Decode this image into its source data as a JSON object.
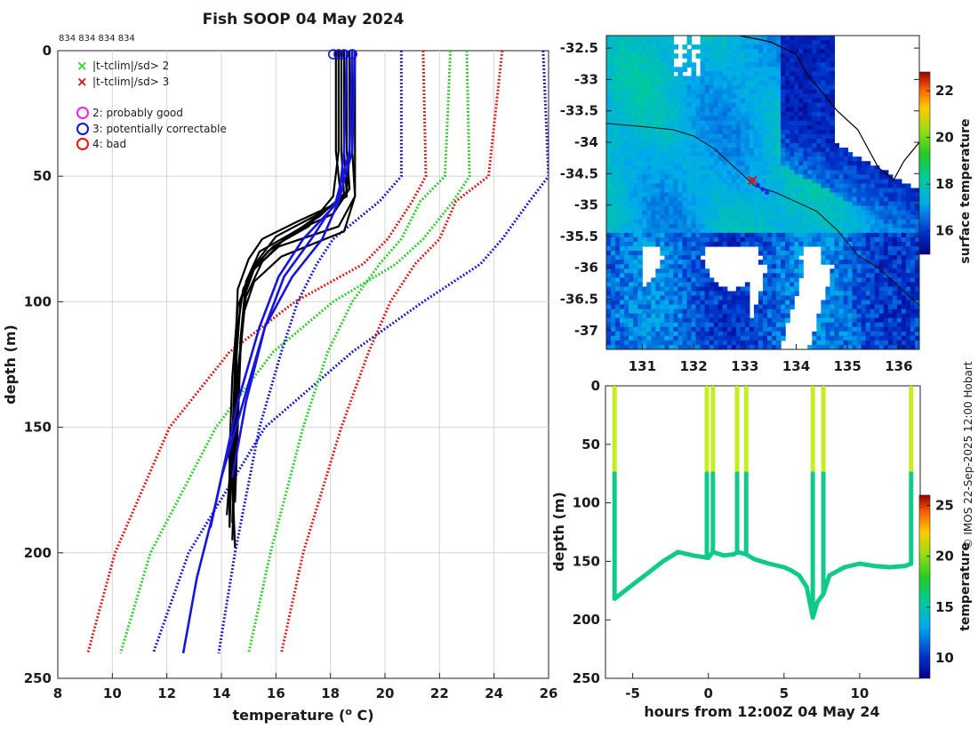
{
  "title": "Fish SOOP 04 May 2024",
  "cruise_ids": "834 834 834 834",
  "credit": "© IMOS 22-Sep-2025 12:00 Hobart",
  "legend": [
    {
      "marker": "x",
      "color": "#22dd22",
      "label": "|t-tclim|/sd> 2"
    },
    {
      "marker": "x",
      "color": "#dd1111",
      "label": "|t-tclim|/sd> 3"
    },
    {
      "marker": "o",
      "color": "#ee22ee",
      "label": "2: probably good"
    },
    {
      "marker": "o",
      "color": "#1111dd",
      "label": "3: potentially correctable"
    },
    {
      "marker": "o",
      "color": "#ee1111",
      "label": "4: bad"
    }
  ],
  "chart_data": [
    {
      "type": "line",
      "name": "profile",
      "xlabel": "temperature (o C)",
      "ylabel": "depth (m)",
      "xlim": [
        8,
        26
      ],
      "ylim": [
        250,
        0
      ],
      "xticks": [
        8,
        10,
        12,
        14,
        16,
        18,
        20,
        22,
        24,
        26
      ],
      "yticks": [
        0,
        50,
        100,
        150,
        200,
        250
      ],
      "clim_depth": [
        0,
        50,
        60,
        75,
        85,
        100,
        120,
        150,
        200,
        240
      ],
      "clim_series": [
        {
          "name": "-3sd",
          "color": "#dd1111",
          "values": [
            21.4,
            21.5,
            21.0,
            20.1,
            19.2,
            16.7,
            14.3,
            12.1,
            10.1,
            9.1
          ]
        },
        {
          "name": "-2sd",
          "color": "#22cc22",
          "values": [
            23.0,
            23.1,
            22.5,
            21.4,
            20.4,
            18.1,
            15.9,
            13.8,
            11.4,
            10.3
          ]
        },
        {
          "name": "-1sd",
          "color": "#1111cc",
          "values": [
            25.8,
            26.0,
            25.3,
            24.3,
            23.5,
            21.4,
            18.8,
            15.6,
            12.8,
            11.5
          ]
        },
        {
          "name": "+1sd",
          "color": "#1111cc",
          "values": [
            20.6,
            20.6,
            19.8,
            18.1,
            17.5,
            16.8,
            16.2,
            15.4,
            14.5,
            13.9
          ]
        },
        {
          "name": "+2sd",
          "color": "#22cc22",
          "values": [
            22.4,
            22.2,
            21.3,
            20.6,
            19.8,
            18.8,
            17.9,
            17.0,
            15.8,
            15.0
          ]
        },
        {
          "name": "+3sd",
          "color": "#dd1111",
          "values": [
            24.3,
            23.8,
            22.6,
            22.0,
            21.1,
            20.2,
            19.4,
            18.4,
            17.0,
            16.2
          ]
        }
      ],
      "black_profiles": [
        {
          "depth": [
            0,
            40,
            58,
            70,
            78,
            86,
            95,
            110,
            140,
            170,
            198
          ],
          "temp": [
            18.3,
            18.3,
            18.1,
            17.2,
            15.9,
            15.2,
            14.8,
            14.6,
            14.5,
            14.4,
            14.5
          ]
        },
        {
          "depth": [
            0,
            40,
            58,
            66,
            74,
            84,
            96,
            120,
            150,
            180
          ],
          "temp": [
            18.5,
            18.5,
            18.6,
            17.4,
            16.0,
            15.3,
            14.9,
            14.7,
            14.6,
            14.5
          ]
        },
        {
          "depth": [
            0,
            40,
            55,
            65,
            72,
            80,
            92,
            115,
            145,
            175
          ],
          "temp": [
            18.6,
            18.6,
            18.7,
            18.1,
            16.7,
            15.4,
            14.9,
            14.7,
            14.6,
            14.4
          ]
        },
        {
          "depth": [
            0,
            40,
            58,
            70,
            78,
            88,
            100,
            130,
            160,
            190
          ],
          "temp": [
            18.9,
            18.9,
            18.9,
            18.3,
            16.1,
            15.1,
            14.7,
            14.5,
            14.4,
            14.3
          ]
        },
        {
          "depth": [
            0,
            40,
            60,
            68,
            75,
            83,
            95,
            125,
            155,
            185
          ],
          "temp": [
            18.2,
            18.2,
            18.4,
            16.8,
            15.5,
            15.0,
            14.6,
            14.5,
            14.4,
            14.2
          ]
        },
        {
          "depth": [
            0,
            40,
            58,
            72,
            82,
            92,
            105,
            135,
            165,
            195
          ],
          "temp": [
            18.8,
            18.8,
            18.9,
            18.5,
            16.2,
            15.2,
            14.8,
            14.6,
            14.5,
            14.4
          ]
        },
        {
          "depth": [
            0,
            40,
            58,
            70,
            80,
            90,
            102,
            130,
            160,
            190
          ],
          "temp": [
            18.4,
            18.4,
            18.5,
            17.0,
            15.7,
            15.0,
            14.6,
            14.4,
            14.3,
            14.3
          ]
        },
        {
          "depth": [
            0,
            40,
            56,
            66,
            74,
            84,
            98,
            128,
            158,
            188
          ],
          "temp": [
            18.7,
            18.7,
            18.6,
            17.6,
            16.4,
            15.5,
            14.9,
            14.6,
            14.5,
            14.4
          ]
        }
      ],
      "blue_profiles": [
        {
          "depth": [
            0,
            40,
            60,
            75,
            90,
            110,
            140,
            170,
            190
          ],
          "temp": [
            18.8,
            18.7,
            18.2,
            17.3,
            16.3,
            15.6,
            14.8,
            14.0,
            13.6
          ]
        },
        {
          "depth": [
            0,
            40,
            60,
            75,
            90,
            110,
            140,
            180,
            210,
            240
          ],
          "temp": [
            18.6,
            18.5,
            18.3,
            17.0,
            16.1,
            15.4,
            14.6,
            13.8,
            13.1,
            12.6
          ]
        },
        {
          "depth": [
            0,
            40,
            60,
            75,
            90,
            110,
            140,
            170
          ],
          "temp": [
            18.9,
            18.8,
            18.3,
            17.7,
            16.6,
            15.6,
            14.9,
            14.4
          ]
        }
      ],
      "surface_circles": [
        18.1,
        18.3,
        18.5,
        18.8
      ]
    },
    {
      "type": "heatmap",
      "name": "sst_map",
      "ylabel": "",
      "xticks": [
        131,
        132,
        133,
        134,
        135,
        136
      ],
      "yticks": [
        -32.5,
        -33,
        -33.5,
        -34,
        -34.5,
        -35,
        -35.5,
        -36,
        -36.5,
        -37
      ],
      "xlim": [
        130.3,
        136.4
      ],
      "ylim": [
        -37.3,
        -32.3
      ],
      "colorbar_label": "surface temperature",
      "colorbar_ticks": [
        16,
        18,
        20,
        22
      ],
      "colorbar_range": [
        15,
        22.8
      ],
      "track_marker": {
        "lon": 133.15,
        "lat": -34.6
      }
    },
    {
      "type": "scatter",
      "name": "depth_time",
      "xlabel": "hours from 12:00Z 04 May 24",
      "ylabel": "depth (m)",
      "xlim": [
        -6.8,
        14
      ],
      "ylim": [
        250,
        0
      ],
      "xticks": [
        -5,
        0,
        5,
        10
      ],
      "yticks": [
        0,
        50,
        100,
        150,
        200,
        250
      ],
      "colorbar_label": "temperature",
      "colorbar_ticks": [
        10,
        15,
        20,
        25
      ],
      "colorbar_range": [
        8,
        26
      ],
      "bottom_track_x": [
        -6.2,
        -5,
        -4,
        -3,
        -2,
        -1,
        0,
        0.3,
        1,
        1.7,
        1.9,
        2.2,
        2.5,
        3,
        4,
        5,
        5.5,
        6,
        6.5,
        6.9,
        7.2,
        7.6,
        8,
        9,
        10,
        11,
        12,
        13,
        13.4
      ],
      "bottom_track_y": [
        182,
        170,
        160,
        150,
        142,
        145,
        147,
        142,
        145,
        144,
        142,
        143,
        144,
        148,
        152,
        155,
        158,
        162,
        172,
        198,
        185,
        178,
        162,
        155,
        152,
        154,
        155,
        154,
        152
      ],
      "casts_x": [
        -6.2,
        -0.1,
        0.3,
        1.9,
        2.5,
        6.9,
        7.6,
        13.4
      ]
    }
  ]
}
